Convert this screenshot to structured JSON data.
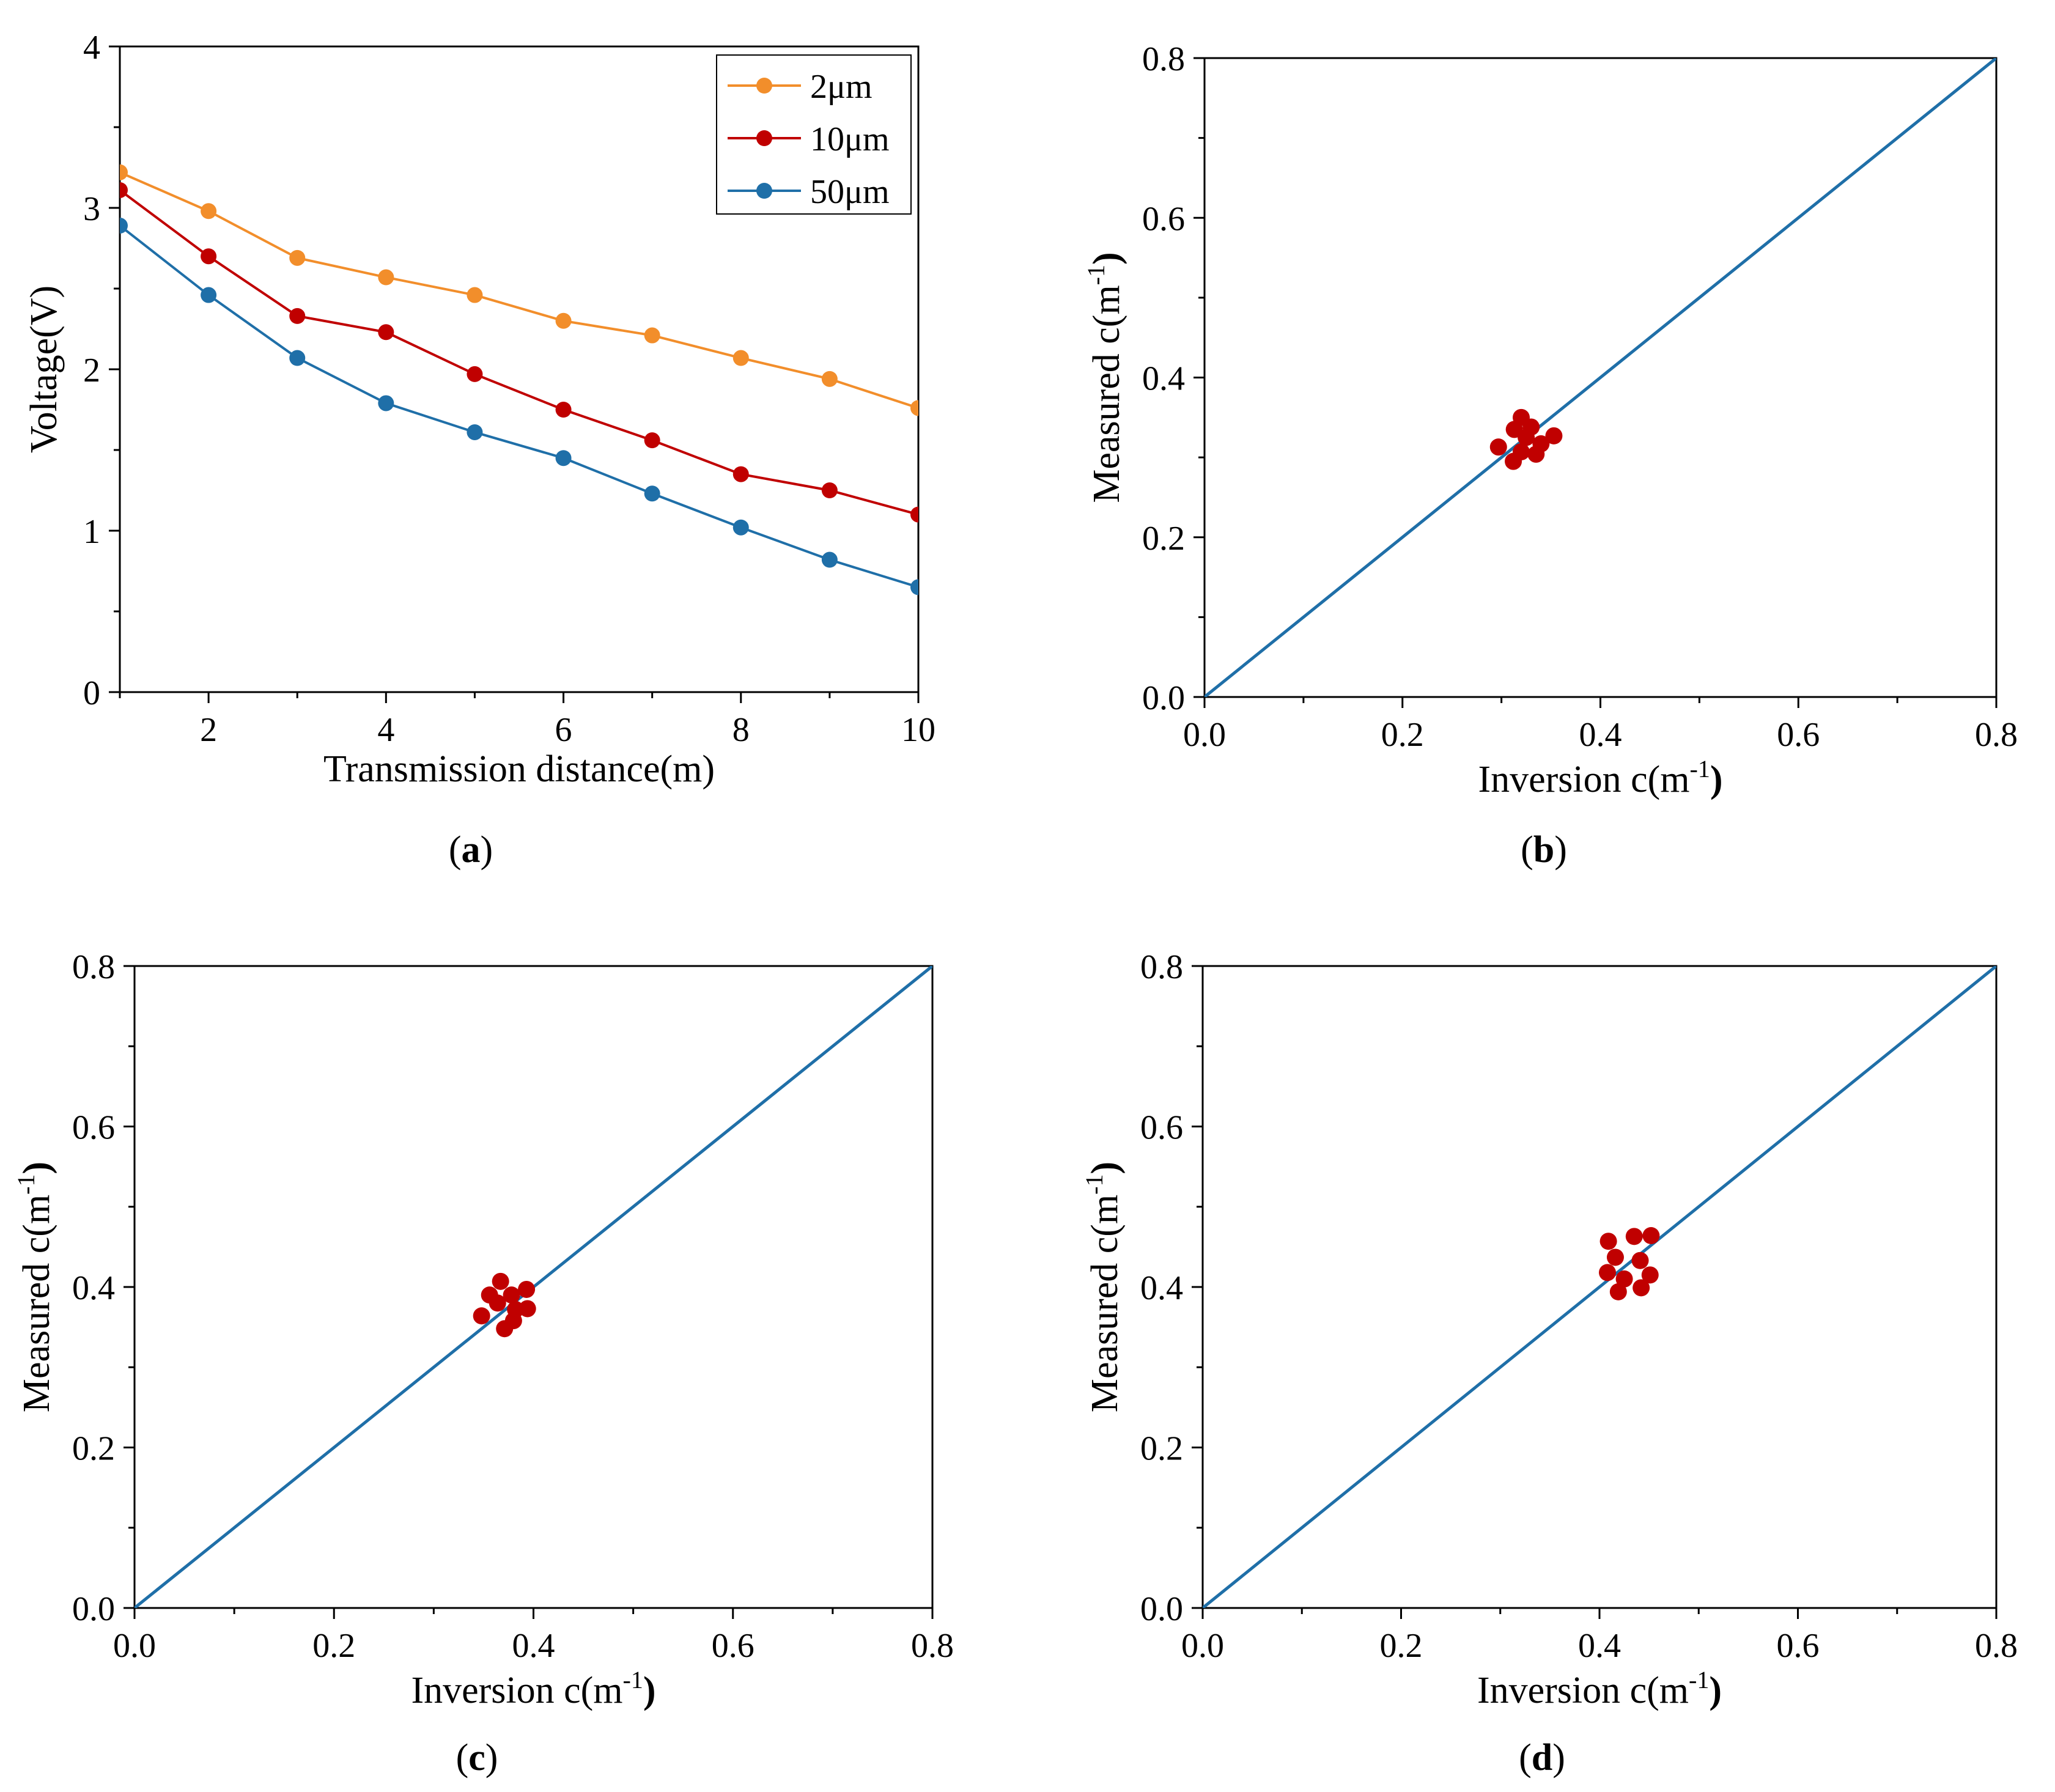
{
  "chart_data": [
    {
      "panel": "a",
      "type": "line",
      "panel_label": {
        "open": "(",
        "letter": "a",
        "close": ")"
      },
      "xlabel": "Transmission distance(m)",
      "ylabel": "Voltage(V)",
      "xlim": [
        1,
        10
      ],
      "ylim": [
        0,
        4
      ],
      "xticks": [
        "2",
        "4",
        "6",
        "8",
        "10"
      ],
      "xtick_values": [
        2,
        4,
        6,
        8,
        10
      ],
      "yticks": [
        "0",
        "1",
        "2",
        "3",
        "4"
      ],
      "ytick_values": [
        0,
        1,
        2,
        3,
        4
      ],
      "legend": "top-right",
      "x": [
        1,
        2,
        3,
        4,
        5,
        6,
        7,
        8,
        9,
        10
      ],
      "series": [
        {
          "name": "2μm",
          "color": "#f28e2b",
          "values": [
            3.22,
            2.98,
            2.69,
            2.57,
            2.46,
            2.3,
            2.21,
            2.07,
            1.94,
            1.76
          ]
        },
        {
          "name": "10μm",
          "color": "#c00000",
          "values": [
            3.11,
            2.7,
            2.33,
            2.23,
            1.97,
            1.75,
            1.56,
            1.35,
            1.25,
            1.1
          ]
        },
        {
          "name": "50μm",
          "color": "#1f6fa8",
          "values": [
            2.89,
            2.46,
            2.07,
            1.79,
            1.61,
            1.45,
            1.23,
            1.02,
            0.82,
            0.65
          ]
        }
      ]
    },
    {
      "panel": "b",
      "type": "scatter",
      "panel_label": {
        "open": "(",
        "letter": "b",
        "close": ")"
      },
      "xlabel": {
        "main": "Inversion  c(m",
        "sup": "-1",
        "close": ")"
      },
      "ylabel": {
        "main": "Measured  c(m",
        "sup": "-1",
        "close": ")"
      },
      "xlim": [
        0,
        0.8
      ],
      "ylim": [
        0,
        0.8
      ],
      "xticks": [
        "0.0",
        "0.2",
        "0.4",
        "0.6",
        "0.8"
      ],
      "yticks": [
        "0.0",
        "0.2",
        "0.4",
        "0.6",
        "0.8"
      ],
      "tick_values": [
        0,
        0.2,
        0.4,
        0.6,
        0.8
      ],
      "reference_line": {
        "x": [
          0,
          0.8
        ],
        "y": [
          0,
          0.8
        ],
        "color": "#1f6fa8"
      },
      "point_color": "#c00000",
      "points": [
        [
          0.297,
          0.313
        ],
        [
          0.313,
          0.335
        ],
        [
          0.32,
          0.35
        ],
        [
          0.33,
          0.338
        ],
        [
          0.353,
          0.327
        ],
        [
          0.34,
          0.317
        ],
        [
          0.32,
          0.307
        ],
        [
          0.312,
          0.295
        ],
        [
          0.335,
          0.304
        ],
        [
          0.325,
          0.325
        ]
      ]
    },
    {
      "panel": "c",
      "type": "scatter",
      "panel_label": {
        "open": "(",
        "letter": "c",
        "close": ")"
      },
      "xlabel": {
        "main": "Inversion  c(m",
        "sup": "-1",
        "close": ")"
      },
      "ylabel": {
        "main": "Measured  c(m",
        "sup": "-1",
        "close": ")"
      },
      "xlim": [
        0,
        0.8
      ],
      "ylim": [
        0,
        0.8
      ],
      "xticks": [
        "0.0",
        "0.2",
        "0.4",
        "0.6",
        "0.8"
      ],
      "yticks": [
        "0.0",
        "0.2",
        "0.4",
        "0.6",
        "0.8"
      ],
      "tick_values": [
        0,
        0.2,
        0.4,
        0.6,
        0.8
      ],
      "reference_line": {
        "x": [
          0,
          0.8
        ],
        "y": [
          0,
          0.8
        ],
        "color": "#1f6fa8"
      },
      "point_color": "#c00000",
      "points": [
        [
          0.348,
          0.364
        ],
        [
          0.356,
          0.39
        ],
        [
          0.367,
          0.407
        ],
        [
          0.378,
          0.39
        ],
        [
          0.393,
          0.397
        ],
        [
          0.394,
          0.373
        ],
        [
          0.382,
          0.372
        ],
        [
          0.38,
          0.358
        ],
        [
          0.371,
          0.348
        ],
        [
          0.364,
          0.38
        ]
      ]
    },
    {
      "panel": "d",
      "type": "scatter",
      "panel_label": {
        "open": "(",
        "letter": "d",
        "close": ")"
      },
      "xlabel": {
        "main": "Inversion  c(m",
        "sup": "-1",
        "close": ")"
      },
      "ylabel": {
        "main": "Measured  c(m",
        "sup": "-1",
        "close": ")"
      },
      "xlim": [
        0,
        0.8
      ],
      "ylim": [
        0,
        0.8
      ],
      "xticks": [
        "0.0",
        "0.2",
        "0.4",
        "0.6",
        "0.8"
      ],
      "yticks": [
        "0.0",
        "0.2",
        "0.4",
        "0.6",
        "0.8"
      ],
      "tick_values": [
        0,
        0.2,
        0.4,
        0.6,
        0.8
      ],
      "reference_line": {
        "x": [
          0,
          0.8
        ],
        "y": [
          0,
          0.8
        ],
        "color": "#1f6fa8"
      },
      "point_color": "#c00000",
      "points": [
        [
          0.409,
          0.457
        ],
        [
          0.416,
          0.437
        ],
        [
          0.408,
          0.418
        ],
        [
          0.425,
          0.41
        ],
        [
          0.419,
          0.394
        ],
        [
          0.442,
          0.399
        ],
        [
          0.451,
          0.415
        ],
        [
          0.441,
          0.433
        ],
        [
          0.435,
          0.463
        ],
        [
          0.452,
          0.464
        ]
      ]
    }
  ]
}
